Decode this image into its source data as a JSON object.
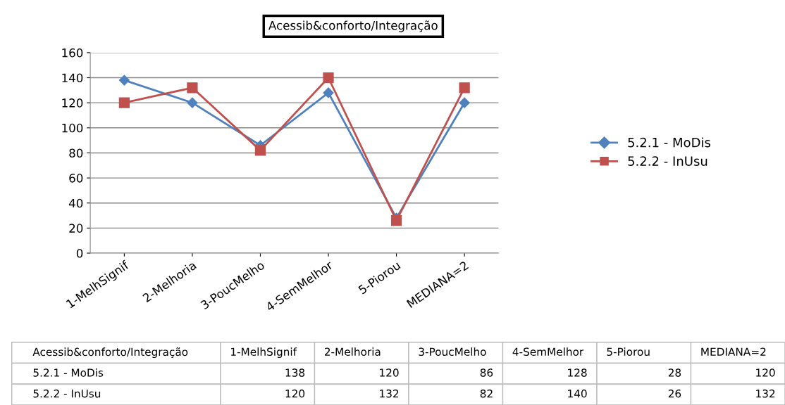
{
  "chart_data": {
    "type": "line",
    "title": "Acessib&conforto/Integração",
    "categories": [
      "1-MelhSignif",
      "2-Melhoria",
      "3-PoucMelho",
      "4-SemMelhor",
      "5-Piorou",
      "MEDIANA=2"
    ],
    "series": [
      {
        "name": "5.2.1 - MoDis",
        "color": "#4f81bd",
        "marker": "diamond",
        "values": [
          138,
          120,
          86,
          128,
          28,
          120
        ]
      },
      {
        "name": "5.2.2 - InUsu",
        "color": "#c0504d",
        "marker": "square",
        "values": [
          120,
          132,
          82,
          140,
          26,
          132
        ]
      }
    ],
    "ylim": [
      0,
      160
    ],
    "yticks": [
      0,
      20,
      40,
      60,
      80,
      100,
      120,
      140,
      160
    ],
    "grid": "y",
    "legend": "right",
    "annotations": [
      "138",
      "120",
      "86",
      "128",
      "28",
      "120",
      "120",
      "132",
      "82",
      "140",
      "26",
      "132"
    ]
  }
}
